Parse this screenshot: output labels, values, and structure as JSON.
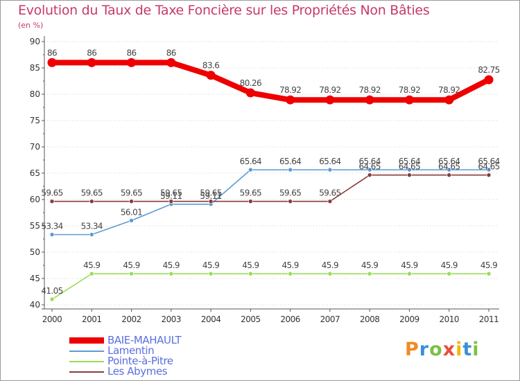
{
  "title": "Evolution du Taux de Taxe Foncière sur les Propriétés Non Bâties",
  "unit": "(en %)",
  "logo": {
    "text": "Proxiti",
    "colors": [
      "#f08a24",
      "#3a8fd8",
      "#7cc242",
      "#e94e3b",
      "#f2b705",
      "#3a8fd8",
      "#7cc242"
    ]
  },
  "chart_data": {
    "type": "line",
    "title": "Evolution du Taux de Taxe Foncière sur les Propriétés Non Bâties",
    "ylabel": "(en %)",
    "xlabel": "",
    "ylim": [
      40,
      90
    ],
    "yticks": [
      40,
      45,
      50,
      55,
      60,
      65,
      70,
      75,
      80,
      85,
      90
    ],
    "categories": [
      "2000",
      "2001",
      "2002",
      "2003",
      "2004",
      "2005",
      "2006",
      "2007",
      "2008",
      "2009",
      "2010",
      "2011"
    ],
    "grid": "horizontal-dotted",
    "series": [
      {
        "name": "BAIE-MAHAULT",
        "color": "#ee0000",
        "emphasis": true,
        "values": [
          86,
          86,
          86,
          86,
          83.6,
          80.26,
          78.92,
          78.92,
          78.92,
          78.92,
          78.92,
          82.75
        ],
        "labels": [
          "86",
          "86",
          "86",
          "86",
          "83.6",
          "80.26",
          "78.92",
          "78.92",
          "78.92",
          "78.92",
          "78.92",
          "82.75"
        ]
      },
      {
        "name": "Lamentin",
        "color": "#5b9bd5",
        "emphasis": false,
        "values": [
          53.34,
          53.34,
          56.01,
          59.11,
          59.11,
          65.64,
          65.64,
          65.64,
          65.64,
          65.64,
          65.64,
          65.64
        ],
        "labels": [
          "53.34",
          "53.34",
          "56.01",
          "59.11",
          "59.11",
          "65.64",
          "65.64",
          "65.64",
          "65.64",
          "65.64",
          "65.64",
          "65.64"
        ]
      },
      {
        "name": "Pointe-à-Pitre",
        "color": "#99dd55",
        "emphasis": false,
        "values": [
          41.05,
          45.9,
          45.9,
          45.9,
          45.9,
          45.9,
          45.9,
          45.9,
          45.9,
          45.9,
          45.9,
          45.9
        ],
        "labels": [
          "41.05",
          "45.9",
          "45.9",
          "45.9",
          "45.9",
          "45.9",
          "45.9",
          "45.9",
          "45.9",
          "45.9",
          "45.9",
          "45.9"
        ]
      },
      {
        "name": "Les Abymes",
        "color": "#8b3a3a",
        "emphasis": false,
        "values": [
          59.65,
          59.65,
          59.65,
          59.65,
          59.65,
          59.65,
          59.65,
          59.65,
          64.65,
          64.65,
          64.65,
          64.65
        ],
        "labels": [
          "59.65",
          "59.65",
          "59.65",
          "59.65",
          "59.65",
          "59.65",
          "59.65",
          "59.65",
          "64.65",
          "64.65",
          "64.65",
          "64.65"
        ]
      }
    ]
  }
}
